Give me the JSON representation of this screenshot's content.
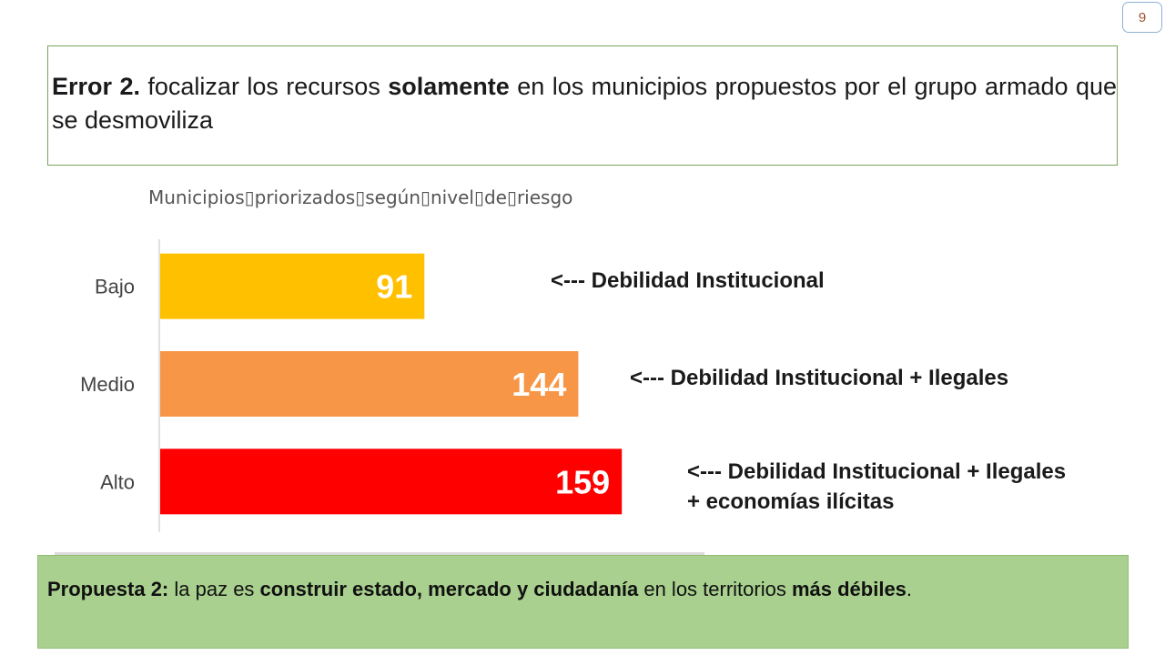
{
  "page_number": "9",
  "error": {
    "lead": "Error 2.",
    "t1": " focalizar los recursos ",
    "bold": "solamente",
    "t2": " en los municipios propuestos por el grupo armado que se desmoviliza"
  },
  "chart_data": {
    "type": "bar",
    "orientation": "horizontal",
    "title": "Municipios\u0000priorizados\u0000según\u0000nivel\u0000de\u0000riesgo",
    "title_display": "Municipios▯priorizados▯según▯nivel▯de▯riesgo",
    "categories": [
      "Bajo",
      "Medio",
      "Alto"
    ],
    "values": [
      91,
      144,
      159
    ],
    "colors": [
      "#ffc000",
      "#f79646",
      "#ff0000"
    ],
    "data_label_color": "#ffffff",
    "grid": false,
    "legend": "none"
  },
  "annotations": [
    "<--- Debilidad Institucional",
    "<--- Debilidad Institucional + Ilegales",
    "<--- Debilidad Institucional + Ilegales + economías ilícitas"
  ],
  "proposal": {
    "lead": "Propuesta 2:",
    "t1": " la paz es ",
    "bold1": "construir estado, mercado y ciudadanía",
    "t2": " en los territorios ",
    "bold2": "más débiles",
    "t3": "."
  },
  "colors": {
    "error_border": "#7aa35a",
    "proposal_bg": "#a9d08e",
    "badge_border": "#8db3d6"
  }
}
